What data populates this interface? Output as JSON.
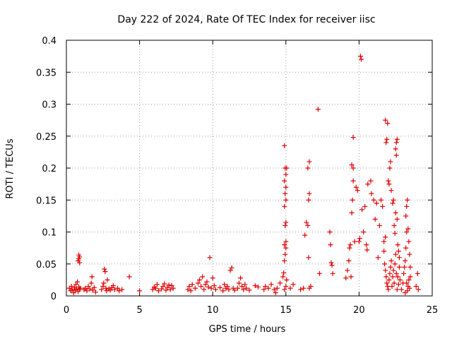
{
  "chart_data": {
    "type": "scatter",
    "title": "Day 222 of 2024, Rate Of TEC Index for receiver iisc",
    "xlabel": "GPS time / hours",
    "ylabel": "ROTI / TECUs",
    "xlim": [
      0,
      25
    ],
    "ylim": [
      0,
      0.4
    ],
    "xticks": [
      "0",
      "5",
      "10",
      "15",
      "20",
      "25"
    ],
    "yticks": [
      "0",
      "0.05",
      "0.1",
      "0.15",
      "0.2",
      "0.25",
      "0.3",
      "0.35",
      "0.4"
    ],
    "grid": true,
    "marker": "+",
    "color": "#e00000",
    "series": [
      {
        "name": "ROTI",
        "points": [
          [
            0.2,
            0.012
          ],
          [
            0.3,
            0.008
          ],
          [
            0.35,
            0.015
          ],
          [
            0.4,
            0.01
          ],
          [
            0.5,
            0.005
          ],
          [
            0.55,
            0.013
          ],
          [
            0.6,
            0.009
          ],
          [
            0.65,
            0.018
          ],
          [
            0.7,
            0.011
          ],
          [
            0.75,
            0.022
          ],
          [
            0.8,
            0.007
          ],
          [
            0.85,
            0.014
          ],
          [
            0.9,
            0.01
          ],
          [
            0.95,
            0.012
          ],
          [
            0.8,
            0.055
          ],
          [
            0.85,
            0.058
          ],
          [
            0.9,
            0.061
          ],
          [
            0.85,
            0.064
          ],
          [
            0.9,
            0.052
          ],
          [
            1.2,
            0.01
          ],
          [
            1.3,
            0.012
          ],
          [
            1.4,
            0.008
          ],
          [
            1.5,
            0.015
          ],
          [
            1.6,
            0.011
          ],
          [
            1.7,
            0.02
          ],
          [
            1.75,
            0.03
          ],
          [
            1.8,
            0.009
          ],
          [
            1.9,
            0.013
          ],
          [
            2.0,
            0.006
          ],
          [
            2.4,
            0.01
          ],
          [
            2.5,
            0.015
          ],
          [
            2.55,
            0.02
          ],
          [
            2.6,
            0.042
          ],
          [
            2.65,
            0.038
          ],
          [
            2.7,
            0.012
          ],
          [
            2.75,
            0.008
          ],
          [
            2.8,
            0.025
          ],
          [
            2.9,
            0.011
          ],
          [
            3.0,
            0.009
          ],
          [
            3.1,
            0.013
          ],
          [
            3.2,
            0.016
          ],
          [
            3.3,
            0.01
          ],
          [
            3.5,
            0.012
          ],
          [
            3.6,
            0.008
          ],
          [
            3.8,
            0.01
          ],
          [
            4.3,
            0.03
          ],
          [
            5.0,
            0.008
          ],
          [
            5.9,
            0.01
          ],
          [
            6.0,
            0.014
          ],
          [
            6.1,
            0.012
          ],
          [
            6.2,
            0.018
          ],
          [
            6.3,
            0.008
          ],
          [
            6.5,
            0.011
          ],
          [
            6.6,
            0.015
          ],
          [
            6.7,
            0.019
          ],
          [
            6.8,
            0.009
          ],
          [
            6.9,
            0.013
          ],
          [
            7.0,
            0.017
          ],
          [
            7.1,
            0.01
          ],
          [
            7.2,
            0.016
          ],
          [
            7.3,
            0.012
          ],
          [
            8.3,
            0.01
          ],
          [
            8.4,
            0.015
          ],
          [
            8.5,
            0.008
          ],
          [
            8.6,
            0.018
          ],
          [
            8.8,
            0.012
          ],
          [
            9.0,
            0.02
          ],
          [
            9.1,
            0.025
          ],
          [
            9.2,
            0.015
          ],
          [
            9.3,
            0.03
          ],
          [
            9.4,
            0.01
          ],
          [
            9.5,
            0.018
          ],
          [
            9.6,
            0.022
          ],
          [
            9.7,
            0.014
          ],
          [
            9.8,
            0.06
          ],
          [
            9.9,
            0.012
          ],
          [
            10.0,
            0.028
          ],
          [
            10.1,
            0.016
          ],
          [
            10.2,
            0.01
          ],
          [
            10.5,
            0.013
          ],
          [
            10.7,
            0.008
          ],
          [
            10.8,
            0.018
          ],
          [
            10.9,
            0.012
          ],
          [
            11.0,
            0.015
          ],
          [
            11.1,
            0.01
          ],
          [
            11.2,
            0.04
          ],
          [
            11.3,
            0.044
          ],
          [
            11.4,
            0.012
          ],
          [
            11.5,
            0.009
          ],
          [
            11.7,
            0.012
          ],
          [
            11.8,
            0.02
          ],
          [
            11.9,
            0.028
          ],
          [
            12.0,
            0.015
          ],
          [
            12.1,
            0.01
          ],
          [
            12.2,
            0.018
          ],
          [
            12.3,
            0.012
          ],
          [
            12.5,
            0.009
          ],
          [
            12.9,
            0.016
          ],
          [
            13.1,
            0.014
          ],
          [
            13.5,
            0.01
          ],
          [
            13.6,
            0.015
          ],
          [
            13.8,
            0.012
          ],
          [
            14.0,
            0.018
          ],
          [
            14.2,
            0.01
          ],
          [
            14.3,
            0.005
          ],
          [
            14.4,
            0.012
          ],
          [
            14.6,
            0.02
          ],
          [
            14.8,
            0.03
          ],
          [
            14.85,
            0.036
          ],
          [
            14.9,
            0.055
          ],
          [
            14.95,
            0.065
          ],
          [
            15.0,
            0.075
          ],
          [
            14.9,
            0.08
          ],
          [
            15.0,
            0.085
          ],
          [
            14.95,
            0.11
          ],
          [
            15.0,
            0.115
          ],
          [
            14.9,
            0.14
          ],
          [
            15.0,
            0.15
          ],
          [
            14.95,
            0.16
          ],
          [
            15.0,
            0.17
          ],
          [
            14.9,
            0.18
          ],
          [
            15.0,
            0.19
          ],
          [
            14.95,
            0.2
          ],
          [
            15.05,
            0.2
          ],
          [
            14.9,
            0.235
          ],
          [
            15.0,
            0.015
          ],
          [
            15.05,
            0.025
          ],
          [
            14.9,
            0.01
          ],
          [
            15.3,
            0.012
          ],
          [
            15.5,
            0.018
          ],
          [
            16.0,
            0.01
          ],
          [
            16.2,
            0.012
          ],
          [
            16.3,
            0.095
          ],
          [
            16.4,
            0.115
          ],
          [
            16.5,
            0.11
          ],
          [
            16.55,
            0.15
          ],
          [
            16.6,
            0.16
          ],
          [
            16.5,
            0.2
          ],
          [
            16.6,
            0.21
          ],
          [
            16.55,
            0.06
          ],
          [
            16.6,
            0.012
          ],
          [
            16.7,
            0.015
          ],
          [
            17.2,
            0.292
          ],
          [
            17.3,
            0.035
          ],
          [
            18.0,
            0.1
          ],
          [
            18.05,
            0.08
          ],
          [
            18.1,
            0.052
          ],
          [
            18.15,
            0.048
          ],
          [
            18.2,
            0.035
          ],
          [
            19.1,
            0.028
          ],
          [
            19.2,
            0.04
          ],
          [
            19.3,
            0.055
          ],
          [
            19.35,
            0.075
          ],
          [
            19.4,
            0.08
          ],
          [
            19.45,
            0.03
          ],
          [
            19.5,
            0.13
          ],
          [
            19.55,
            0.15
          ],
          [
            19.6,
            0.18
          ],
          [
            19.5,
            0.205
          ],
          [
            19.6,
            0.2
          ],
          [
            19.6,
            0.248
          ],
          [
            19.8,
            0.17
          ],
          [
            19.9,
            0.165
          ],
          [
            19.7,
            0.085
          ],
          [
            20.0,
            0.085
          ],
          [
            20.05,
            0.09
          ],
          [
            20.1,
            0.375
          ],
          [
            20.15,
            0.37
          ],
          [
            20.2,
            0.135
          ],
          [
            20.3,
            0.1
          ],
          [
            20.4,
            0.14
          ],
          [
            20.5,
            0.08
          ],
          [
            20.55,
            0.072
          ],
          [
            20.6,
            0.175
          ],
          [
            20.8,
            0.18
          ],
          [
            20.85,
            0.16
          ],
          [
            21.0,
            0.15
          ],
          [
            21.1,
            0.12
          ],
          [
            21.2,
            0.145
          ],
          [
            21.3,
            0.06
          ],
          [
            21.4,
            0.11
          ],
          [
            21.5,
            0.15
          ],
          [
            21.6,
            0.14
          ],
          [
            21.7,
            0.085
          ],
          [
            21.8,
            0.092
          ],
          [
            21.8,
            0.275
          ],
          [
            21.85,
            0.24
          ],
          [
            21.9,
            0.245
          ],
          [
            21.95,
            0.27
          ],
          [
            22.0,
            0.18
          ],
          [
            22.05,
            0.175
          ],
          [
            22.1,
            0.2
          ],
          [
            22.15,
            0.21
          ],
          [
            22.2,
            0.165
          ],
          [
            22.3,
            0.145
          ],
          [
            22.35,
            0.15
          ],
          [
            22.4,
            0.11
          ],
          [
            22.45,
            0.098
          ],
          [
            22.5,
            0.13
          ],
          [
            22.5,
            0.23
          ],
          [
            22.55,
            0.24
          ],
          [
            22.6,
            0.245
          ],
          [
            22.55,
            0.22
          ],
          [
            22.6,
            0.12
          ],
          [
            22.65,
            0.08
          ],
          [
            22.7,
            0.07
          ],
          [
            22.75,
            0.06
          ],
          [
            21.7,
            0.07
          ],
          [
            21.75,
            0.05
          ],
          [
            21.8,
            0.04
          ],
          [
            21.85,
            0.03
          ],
          [
            21.9,
            0.02
          ],
          [
            21.95,
            0.015
          ],
          [
            22.0,
            0.01
          ],
          [
            22.05,
            0.025
          ],
          [
            22.1,
            0.035
          ],
          [
            22.15,
            0.045
          ],
          [
            22.2,
            0.055
          ],
          [
            22.25,
            0.015
          ],
          [
            22.3,
            0.03
          ],
          [
            22.35,
            0.04
          ],
          [
            22.4,
            0.02
          ],
          [
            22.45,
            0.05
          ],
          [
            22.5,
            0.065
          ],
          [
            22.55,
            0.035
          ],
          [
            22.6,
            0.01
          ],
          [
            22.65,
            0.03
          ],
          [
            22.7,
            0.018
          ],
          [
            22.75,
            0.045
          ],
          [
            22.8,
            0.025
          ],
          [
            22.9,
            0.01
          ],
          [
            23.0,
            0.02
          ],
          [
            23.05,
            0.035
          ],
          [
            23.1,
            0.045
          ],
          [
            23.15,
            0.055
          ],
          [
            23.2,
            0.075
          ],
          [
            23.25,
            0.1
          ],
          [
            23.2,
            0.125
          ],
          [
            23.25,
            0.14
          ],
          [
            23.3,
            0.15
          ],
          [
            23.35,
            0.105
          ],
          [
            23.4,
            0.085
          ],
          [
            23.45,
            0.065
          ],
          [
            23.5,
            0.045
          ],
          [
            23.3,
            0.008
          ],
          [
            23.35,
            0.015
          ],
          [
            23.4,
            0.025
          ],
          [
            23.45,
            0.012
          ],
          [
            23.5,
            0.03
          ],
          [
            23.25,
            0.02
          ],
          [
            23.15,
            0.005
          ],
          [
            23.9,
            0.015
          ],
          [
            24.0,
            0.035
          ],
          [
            24.05,
            0.01
          ]
        ]
      }
    ]
  }
}
